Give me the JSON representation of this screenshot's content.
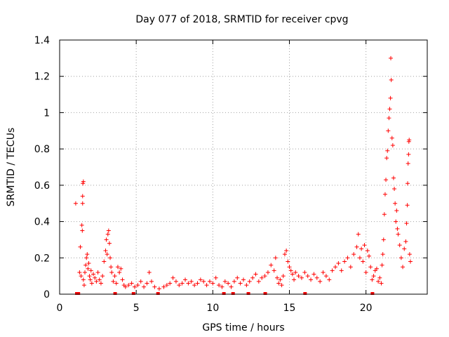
{
  "chart_data": {
    "type": "scatter",
    "title": "Day 077 of 2018, SRMTID for receiver cpvg",
    "xlabel": "GPS time / hours",
    "ylabel": "SRMTID / TECUs",
    "xlim": [
      0,
      24
    ],
    "ylim": [
      0,
      1.4
    ],
    "xticks": [
      0,
      5,
      10,
      15,
      20
    ],
    "xtick_labels": [
      "0",
      "5",
      "10",
      "15",
      "20"
    ],
    "yticks": [
      0,
      0.2,
      0.4,
      0.6,
      0.8,
      1,
      1.2,
      1.4
    ],
    "ytick_labels": [
      "0",
      "0.2",
      "0.4",
      "0.6",
      "0.8",
      "1",
      "1.2",
      "1.4"
    ],
    "grid": true,
    "marker": "+",
    "color": "#ff0000",
    "zero_gap_markers_x": [
      1.1,
      1.2,
      3.6,
      4.8,
      6.4,
      10.7,
      11.3,
      12.3,
      13.4,
      16.0,
      20.4
    ],
    "series": [
      {
        "name": "SRMTID",
        "points": [
          [
            1.05,
            0.5
          ],
          [
            1.3,
            0.12
          ],
          [
            1.35,
            0.26
          ],
          [
            1.4,
            0.1
          ],
          [
            1.45,
            0.38
          ],
          [
            1.48,
            0.35
          ],
          [
            1.5,
            0.5
          ],
          [
            1.5,
            0.54
          ],
          [
            1.52,
            0.61
          ],
          [
            1.55,
            0.62
          ],
          [
            1.55,
            0.08
          ],
          [
            1.6,
            0.05
          ],
          [
            1.65,
            0.12
          ],
          [
            1.7,
            0.16
          ],
          [
            1.75,
            0.2
          ],
          [
            1.8,
            0.22
          ],
          [
            1.85,
            0.14
          ],
          [
            1.9,
            0.17
          ],
          [
            1.95,
            0.1
          ],
          [
            2.0,
            0.08
          ],
          [
            2.05,
            0.13
          ],
          [
            2.1,
            0.06
          ],
          [
            2.2,
            0.11
          ],
          [
            2.3,
            0.09
          ],
          [
            2.4,
            0.07
          ],
          [
            2.5,
            0.12
          ],
          [
            2.6,
            0.08
          ],
          [
            2.7,
            0.06
          ],
          [
            2.8,
            0.1
          ],
          [
            2.9,
            0.18
          ],
          [
            3.0,
            0.24
          ],
          [
            3.05,
            0.3
          ],
          [
            3.1,
            0.22
          ],
          [
            3.15,
            0.33
          ],
          [
            3.2,
            0.35
          ],
          [
            3.25,
            0.28
          ],
          [
            3.3,
            0.2
          ],
          [
            3.35,
            0.15
          ],
          [
            3.4,
            0.12
          ],
          [
            3.5,
            0.07
          ],
          [
            3.6,
            0.1
          ],
          [
            3.7,
            0.06
          ],
          [
            3.8,
            0.15
          ],
          [
            3.9,
            0.12
          ],
          [
            4.0,
            0.14
          ],
          [
            4.1,
            0.08
          ],
          [
            4.2,
            0.05
          ],
          [
            4.3,
            0.04
          ],
          [
            4.5,
            0.05
          ],
          [
            4.7,
            0.06
          ],
          [
            4.9,
            0.04
          ],
          [
            5.1,
            0.05
          ],
          [
            5.3,
            0.07
          ],
          [
            5.5,
            0.04
          ],
          [
            5.7,
            0.06
          ],
          [
            5.85,
            0.12
          ],
          [
            6.0,
            0.07
          ],
          [
            6.2,
            0.04
          ],
          [
            6.5,
            0.03
          ],
          [
            6.8,
            0.04
          ],
          [
            7.0,
            0.05
          ],
          [
            7.2,
            0.06
          ],
          [
            7.4,
            0.09
          ],
          [
            7.6,
            0.07
          ],
          [
            7.8,
            0.05
          ],
          [
            8.0,
            0.06
          ],
          [
            8.2,
            0.08
          ],
          [
            8.4,
            0.06
          ],
          [
            8.6,
            0.07
          ],
          [
            8.8,
            0.05
          ],
          [
            9.0,
            0.06
          ],
          [
            9.2,
            0.08
          ],
          [
            9.4,
            0.07
          ],
          [
            9.6,
            0.05
          ],
          [
            9.8,
            0.07
          ],
          [
            10.0,
            0.06
          ],
          [
            10.2,
            0.09
          ],
          [
            10.4,
            0.05
          ],
          [
            10.6,
            0.04
          ],
          [
            10.8,
            0.07
          ],
          [
            11.0,
            0.06
          ],
          [
            11.2,
            0.04
          ],
          [
            11.4,
            0.07
          ],
          [
            11.6,
            0.09
          ],
          [
            11.8,
            0.06
          ],
          [
            12.0,
            0.08
          ],
          [
            12.2,
            0.05
          ],
          [
            12.4,
            0.07
          ],
          [
            12.6,
            0.09
          ],
          [
            12.8,
            0.11
          ],
          [
            13.0,
            0.07
          ],
          [
            13.2,
            0.09
          ],
          [
            13.4,
            0.1
          ],
          [
            13.6,
            0.12
          ],
          [
            13.8,
            0.16
          ],
          [
            14.0,
            0.13
          ],
          [
            14.1,
            0.2
          ],
          [
            14.2,
            0.09
          ],
          [
            14.3,
            0.06
          ],
          [
            14.4,
            0.08
          ],
          [
            14.5,
            0.05
          ],
          [
            14.6,
            0.1
          ],
          [
            14.7,
            0.22
          ],
          [
            14.8,
            0.24
          ],
          [
            14.9,
            0.18
          ],
          [
            15.0,
            0.15
          ],
          [
            15.1,
            0.13
          ],
          [
            15.2,
            0.11
          ],
          [
            15.3,
            0.08
          ],
          [
            15.4,
            0.12
          ],
          [
            15.6,
            0.1
          ],
          [
            15.8,
            0.09
          ],
          [
            16.0,
            0.12
          ],
          [
            16.2,
            0.1
          ],
          [
            16.4,
            0.08
          ],
          [
            16.6,
            0.11
          ],
          [
            16.8,
            0.09
          ],
          [
            17.0,
            0.07
          ],
          [
            17.2,
            0.12
          ],
          [
            17.4,
            0.1
          ],
          [
            17.6,
            0.08
          ],
          [
            17.8,
            0.13
          ],
          [
            18.0,
            0.15
          ],
          [
            18.2,
            0.17
          ],
          [
            18.4,
            0.13
          ],
          [
            18.6,
            0.18
          ],
          [
            18.8,
            0.2
          ],
          [
            19.0,
            0.15
          ],
          [
            19.2,
            0.22
          ],
          [
            19.4,
            0.26
          ],
          [
            19.5,
            0.33
          ],
          [
            19.6,
            0.2
          ],
          [
            19.7,
            0.25
          ],
          [
            19.8,
            0.18
          ],
          [
            19.9,
            0.27
          ],
          [
            20.0,
            0.12
          ],
          [
            20.1,
            0.24
          ],
          [
            20.2,
            0.21
          ],
          [
            20.3,
            0.15
          ],
          [
            20.4,
            0.08
          ],
          [
            20.5,
            0.1
          ],
          [
            20.6,
            0.13
          ],
          [
            20.7,
            0.14
          ],
          [
            20.8,
            0.07
          ],
          [
            20.9,
            0.09
          ],
          [
            21.0,
            0.06
          ],
          [
            21.05,
            0.16
          ],
          [
            21.1,
            0.22
          ],
          [
            21.15,
            0.3
          ],
          [
            21.2,
            0.44
          ],
          [
            21.25,
            0.55
          ],
          [
            21.3,
            0.63
          ],
          [
            21.35,
            0.75
          ],
          [
            21.4,
            0.79
          ],
          [
            21.45,
            0.9
          ],
          [
            21.5,
            0.97
          ],
          [
            21.55,
            1.02
          ],
          [
            21.6,
            1.08
          ],
          [
            21.62,
            1.3
          ],
          [
            21.65,
            1.18
          ],
          [
            21.7,
            0.86
          ],
          [
            21.75,
            0.82
          ],
          [
            21.8,
            0.64
          ],
          [
            21.85,
            0.58
          ],
          [
            21.9,
            0.5
          ],
          [
            21.95,
            0.4
          ],
          [
            22.0,
            0.46
          ],
          [
            22.05,
            0.36
          ],
          [
            22.1,
            0.33
          ],
          [
            22.2,
            0.27
          ],
          [
            22.3,
            0.2
          ],
          [
            22.4,
            0.15
          ],
          [
            22.5,
            0.25
          ],
          [
            22.6,
            0.29
          ],
          [
            22.65,
            0.39
          ],
          [
            22.7,
            0.49
          ],
          [
            22.72,
            0.61
          ],
          [
            22.75,
            0.72
          ],
          [
            22.78,
            0.77
          ],
          [
            22.8,
            0.84
          ],
          [
            22.82,
            0.85
          ],
          [
            22.85,
            0.22
          ],
          [
            22.9,
            0.18
          ]
        ]
      }
    ]
  }
}
